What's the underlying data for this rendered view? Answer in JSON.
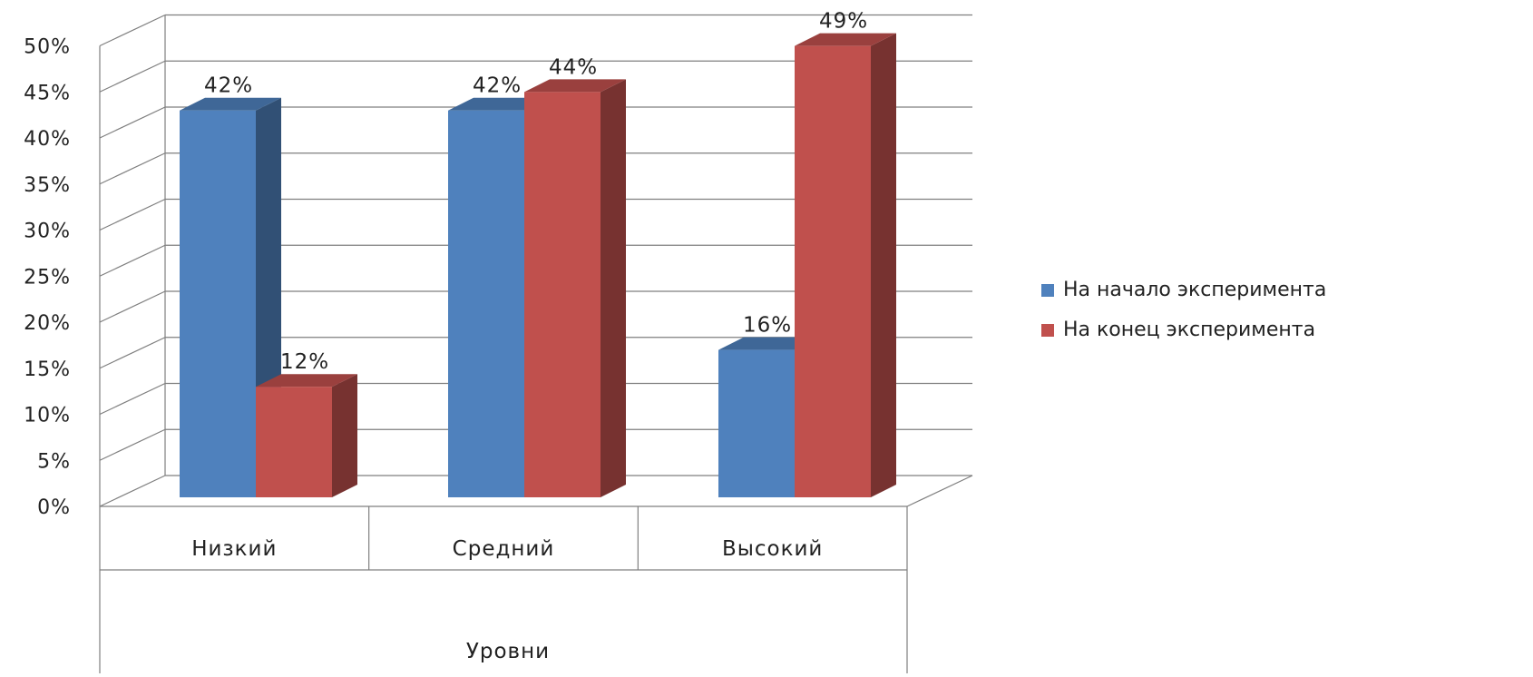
{
  "chart_data": {
    "type": "bar",
    "style": "3d-clustered-column",
    "categories": [
      "Низкий",
      "Средний",
      "Высокий"
    ],
    "xlabel": "Уровни",
    "ylabel": "",
    "title": "",
    "ylim": [
      0,
      50
    ],
    "yticks": [
      "0%",
      "5%",
      "10%",
      "15%",
      "20%",
      "25%",
      "30%",
      "35%",
      "40%",
      "45%",
      "50%"
    ],
    "grid": true,
    "legend": "right",
    "series": [
      {
        "name": "На начало эксперимента",
        "values": [
          42,
          42,
          16
        ],
        "labels": [
          "42%",
          "42%",
          "16%"
        ],
        "color": "#4F81BD"
      },
      {
        "name": "На конец эксперимента",
        "values": [
          12,
          44,
          49
        ],
        "labels": [
          "12%",
          "44%",
          "49%"
        ],
        "color": "#C0504D"
      }
    ]
  }
}
